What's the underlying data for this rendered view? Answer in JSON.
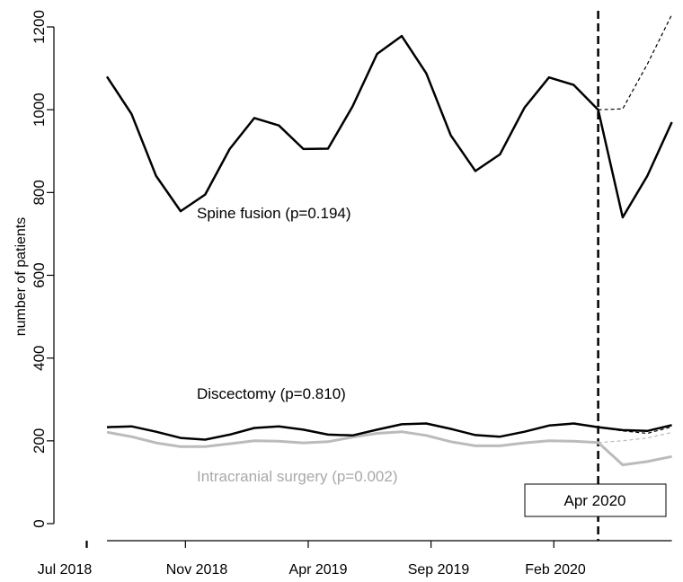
{
  "chart_data": {
    "type": "line",
    "ylabel": "number of patients",
    "ylim": [
      -40,
      1240
    ],
    "yticks": [
      0,
      200,
      400,
      600,
      800,
      1000,
      1200
    ],
    "x_tick_labels": [
      {
        "index": 0,
        "label": "Jul 2018"
      },
      {
        "index": 4,
        "label": "Nov 2018"
      },
      {
        "index": 9,
        "label": "Apr 2019"
      },
      {
        "index": 14,
        "label": "Sep 2019"
      },
      {
        "index": 19,
        "label": "Feb 2020"
      }
    ],
    "x": [
      "Jul 2018",
      "Aug 2018",
      "Sep 2018",
      "Oct 2018",
      "Nov 2018",
      "Dec 2018",
      "Jan 2019",
      "Feb 2019",
      "Mar 2019",
      "Apr 2019",
      "May 2019",
      "Jun 2019",
      "Jul 2019",
      "Aug 2019",
      "Sep 2019",
      "Oct 2019",
      "Nov 2019",
      "Dec 2019",
      "Jan 2020",
      "Feb 2020",
      "Mar 2020",
      "Apr 2020",
      "May 2020",
      "Jun 2020"
    ],
    "cutoff": {
      "x": "Mar 2020",
      "label": "Apr 2020"
    },
    "series": [
      {
        "name": "Spine fusion (p=0.194)",
        "color": "#000000",
        "values": [
          1080,
          990,
          840,
          755,
          795,
          905,
          980,
          962,
          905,
          906,
          1008,
          1135,
          1178,
          1088,
          938,
          852,
          892,
          1005,
          1078,
          1060,
          1000,
          740,
          840,
          970
        ],
        "counterfactual": [
          1000,
          1002,
          1110,
          1230
        ]
      },
      {
        "name": "Discectomy (p=0.810)",
        "color": "#000000",
        "values": [
          233,
          235,
          222,
          207,
          203,
          215,
          231,
          235,
          227,
          215,
          213,
          227,
          240,
          242,
          229,
          214,
          210,
          222,
          237,
          242,
          233,
          226,
          224,
          238
        ],
        "counterfactual": [
          233,
          224,
          218,
          234
        ]
      },
      {
        "name": "Intracranial surgery (p=0.002)",
        "color": "#bbbbbb",
        "values": [
          221,
          210,
          195,
          186,
          186,
          193,
          200,
          199,
          195,
          198,
          209,
          218,
          222,
          213,
          198,
          188,
          188,
          195,
          200,
          199,
          196,
          142,
          150,
          162
        ],
        "counterfactual": [
          196,
          200,
          207,
          220
        ]
      }
    ]
  }
}
